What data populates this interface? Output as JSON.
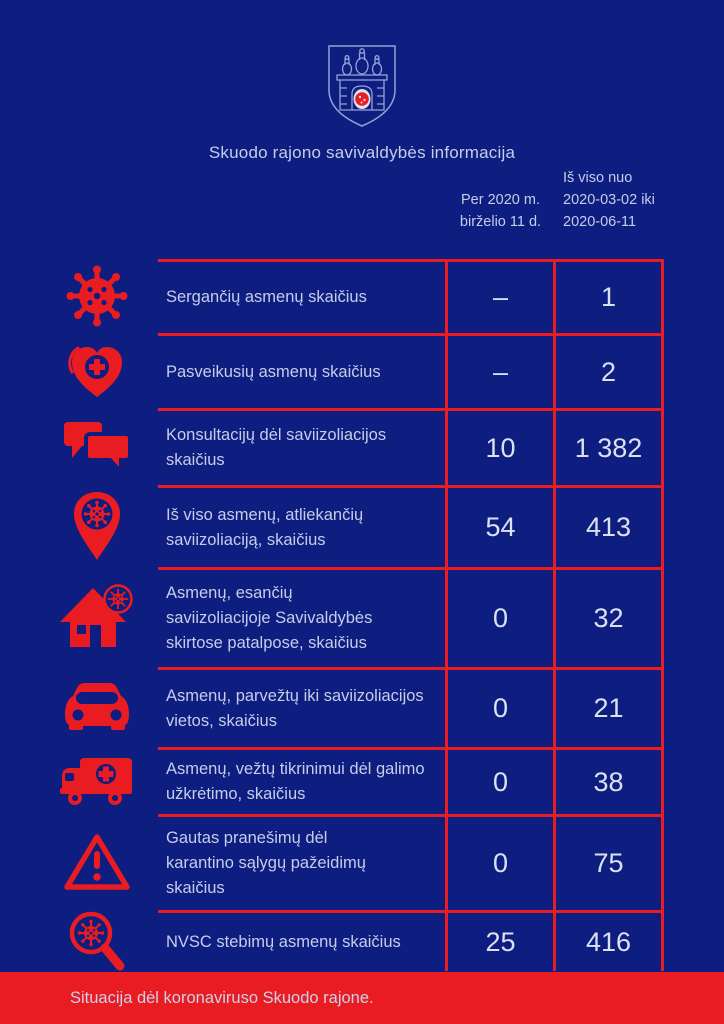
{
  "colors": {
    "background": "#0e1d80",
    "accent_red": "#e91c22",
    "text": "#c6cde9",
    "value_text": "#dce1f1"
  },
  "header": {
    "crest_icon": "skuodas-coat-of-arms-icon",
    "title": "Skuodo rajono savivaldybės informacija",
    "column_period": "Per 2020 m.\nbirželio 11 d.",
    "column_total": "Iš viso nuo\n2020-03-02 iki\n2020-06-11"
  },
  "table": {
    "rows": [
      {
        "icon": "virus-icon",
        "label": "Sergančių asmenų skaičius",
        "value_period": "–",
        "value_total": "1"
      },
      {
        "icon": "heart-cross-icon",
        "label": "Pasveikusių asmenų skaičius",
        "value_period": "–",
        "value_total": "2"
      },
      {
        "icon": "chat-bubbles-icon",
        "label": "Konsultacijų dėl saviizoliacijos\nskaičius",
        "value_period": "10",
        "value_total": "1 382"
      },
      {
        "icon": "location-pin-virus-icon",
        "label": "Iš viso asmenų, atliekančių\nsaviizoliaciją, skaičius",
        "value_period": "54",
        "value_total": "413"
      },
      {
        "icon": "house-virus-icon",
        "label": "Asmenų, esančių\nsaviizoliacijoje Savivaldybės\nskirtose patalpose, skaičius",
        "value_period": "0",
        "value_total": "32"
      },
      {
        "icon": "car-icon",
        "label": "Asmenų, parvežtų iki saviizoliacijos\nvietos, skaičius",
        "value_period": "0",
        "value_total": "21"
      },
      {
        "icon": "ambulance-icon",
        "label": "Asmenų, vežtų tikrinimui dėl galimo\nužkrėtimo, skaičius",
        "value_period": "0",
        "value_total": "38"
      },
      {
        "icon": "warning-triangle-icon",
        "label": "Gautas pranešimų dėl\nkarantino sąlygų pažeidimų\nskaičius",
        "value_period": "0",
        "value_total": "75"
      },
      {
        "icon": "search-virus-icon",
        "label": "NVSC stebimų asmenų skaičius",
        "value_period": "25",
        "value_total": "416"
      }
    ]
  },
  "footer": {
    "text": "Situacija dėl koronaviruso Skuodo rajone."
  }
}
